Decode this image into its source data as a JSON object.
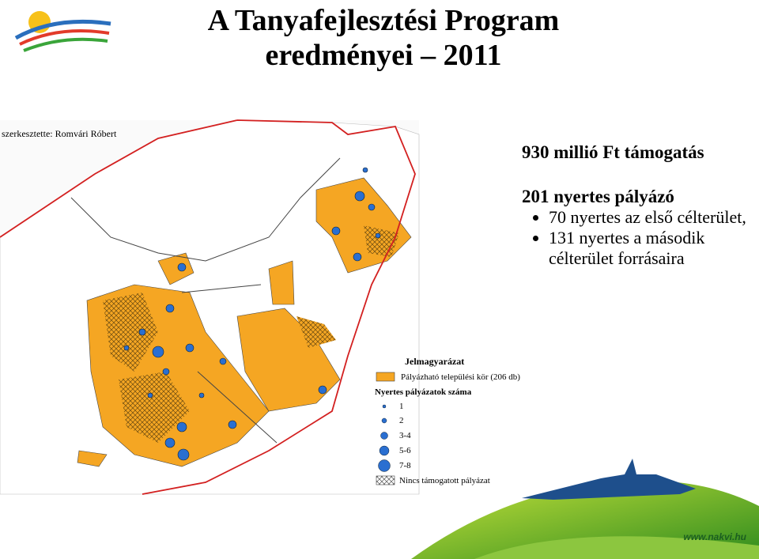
{
  "header": {
    "title_lines": [
      "A Tanyafejlesztési Program",
      "eredményei – 2011"
    ]
  },
  "map": {
    "credit": "szerkesztette: Romvári Róbert"
  },
  "summary": {
    "support": "930 millió Ft támogatás",
    "winners": "201 nyertes pályázó",
    "bullets": [
      "70 nyertes az első célterület,",
      "131 nyertes a második célterület forrásaira"
    ]
  },
  "legend": {
    "title": "Jelmagyarázat",
    "eligible": "Pályázható települési kör (206 db)",
    "count_title": "Nyertes pályázatok száma",
    "counts": [
      "1",
      "2",
      "3-4",
      "5-6",
      "7-8"
    ],
    "none": "Nincs támogatott pályázat"
  },
  "footer": {
    "url": "www.nakvi.hu"
  }
}
